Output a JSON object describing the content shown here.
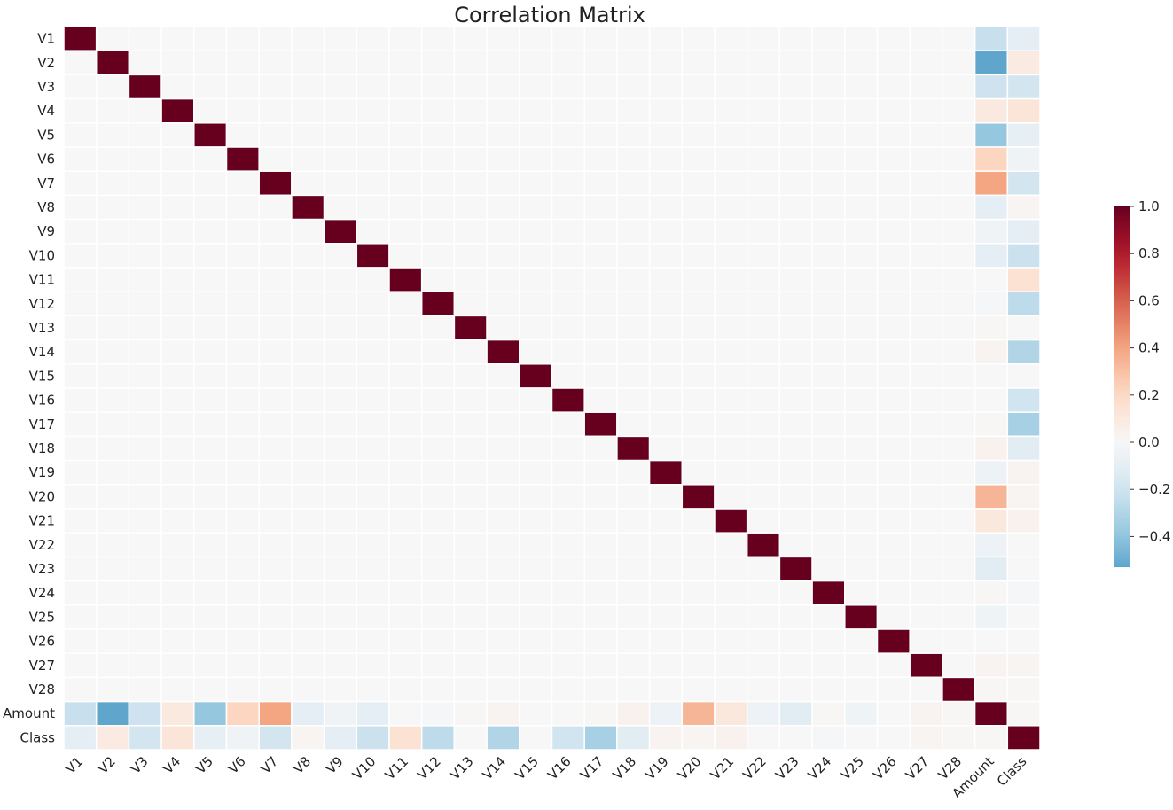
{
  "chart_data": {
    "type": "heatmap",
    "title": "Correlation Matrix",
    "labels": [
      "V1",
      "V2",
      "V3",
      "V4",
      "V5",
      "V6",
      "V7",
      "V8",
      "V9",
      "V10",
      "V11",
      "V12",
      "V13",
      "V14",
      "V15",
      "V16",
      "V17",
      "V18",
      "V19",
      "V20",
      "V21",
      "V22",
      "V23",
      "V24",
      "V25",
      "V26",
      "V27",
      "V28",
      "Amount",
      "Class"
    ],
    "amount_correlations": [
      -0.23,
      -0.53,
      -0.21,
      0.1,
      -0.39,
      0.22,
      0.4,
      -0.1,
      -0.04,
      -0.1,
      0.0,
      -0.01,
      0.01,
      0.03,
      0.0,
      0.0,
      0.01,
      0.04,
      -0.06,
      0.34,
      0.11,
      -0.06,
      -0.11,
      0.01,
      -0.05,
      0.0,
      0.03,
      0.01,
      1.0,
      0.01
    ],
    "class_correlations": [
      -0.1,
      0.09,
      -0.19,
      0.13,
      -0.09,
      -0.04,
      -0.19,
      0.02,
      -0.1,
      -0.22,
      0.15,
      -0.26,
      -0.0,
      -0.3,
      -0.0,
      -0.2,
      -0.33,
      -0.11,
      0.03,
      0.02,
      0.04,
      0.0,
      -0.0,
      -0.01,
      0.0,
      0.0,
      0.02,
      0.01,
      0.01,
      1.0
    ],
    "colormap": "RdBu_r",
    "vmin": -0.53,
    "vmax": 1.0,
    "colorbar_ticks": [
      1.0,
      0.8,
      0.6,
      0.4,
      0.2,
      0.0,
      -0.2,
      -0.4
    ],
    "colorbar_tick_labels": [
      "1.0",
      "0.8",
      "0.6",
      "0.4",
      "0.2",
      "0.0",
      "−0.2",
      "−0.4"
    ],
    "grid_lines": true,
    "colors": {
      "cell_border": "#ffffff",
      "text": "#222222"
    }
  }
}
